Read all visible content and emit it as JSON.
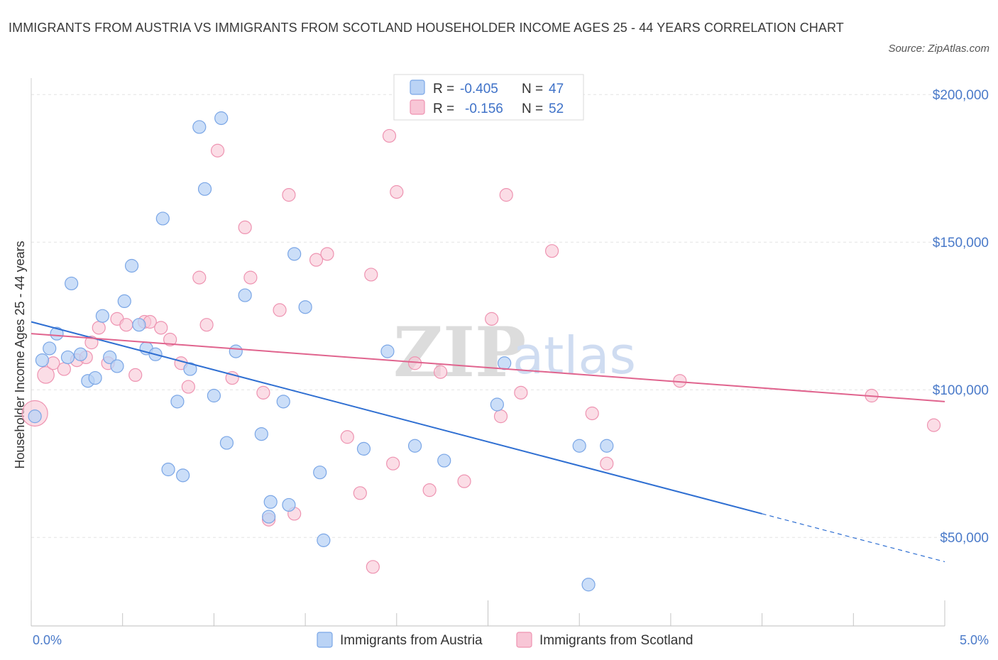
{
  "title": "IMMIGRANTS FROM AUSTRIA VS IMMIGRANTS FROM SCOTLAND HOUSEHOLDER INCOME AGES 25 - 44 YEARS CORRELATION CHART",
  "source": "Source: ZipAtlas.com",
  "watermark": {
    "zip": "ZIP",
    "atlas": "atlas"
  },
  "colors": {
    "austria_fill": "#bad3f5",
    "austria_stroke": "#7aa6e6",
    "austria_line": "#2f6fd2",
    "scotland_fill": "#f8c6d6",
    "scotland_stroke": "#ee93b1",
    "scotland_line": "#e0648e",
    "grid": "#e3e3e3",
    "tick_text": "#4a7ac9"
  },
  "stats": {
    "r_label": "R =",
    "n_label": "N =",
    "austria": {
      "r": "-0.405",
      "n": "47"
    },
    "scotland": {
      "r": "-0.156",
      "n": "52"
    }
  },
  "chart_data": {
    "type": "scatter",
    "title": "IMMIGRANTS FROM AUSTRIA VS IMMIGRANTS FROM SCOTLAND HOUSEHOLDER INCOME AGES 25 - 44 YEARS CORRELATION CHART",
    "xlabel": "",
    "ylabel": "Householder Income Ages 25 - 44 years",
    "xlim": [
      0,
      5
    ],
    "ylim": [
      20000,
      220000
    ],
    "x_tick_labels": [
      {
        "value": 0,
        "label": "0.0%"
      },
      {
        "value": 5,
        "label": "5.0%"
      }
    ],
    "y_ticks": [
      {
        "value": 200000,
        "label": "$200,000"
      },
      {
        "value": 150000,
        "label": "$150,000"
      },
      {
        "value": 100000,
        "label": "$100,000"
      },
      {
        "value": 50000,
        "label": "$50,000"
      }
    ],
    "grid": true,
    "legend_position": "bottom-center",
    "series": [
      {
        "name": "Immigrants from Austria",
        "color": "#7aa6e6",
        "points": [
          [
            0.06,
            110000,
            1
          ],
          [
            0.1,
            114000,
            1
          ],
          [
            0.14,
            119000,
            1
          ],
          [
            0.2,
            111000,
            1
          ],
          [
            0.22,
            136000,
            1
          ],
          [
            0.27,
            112000,
            1
          ],
          [
            0.31,
            103000,
            1
          ],
          [
            0.35,
            104000,
            1
          ],
          [
            0.39,
            125000,
            1
          ],
          [
            0.43,
            111000,
            1
          ],
          [
            0.47,
            108000,
            1
          ],
          [
            0.51,
            130000,
            1
          ],
          [
            0.55,
            142000,
            1
          ],
          [
            0.59,
            122000,
            1
          ],
          [
            0.63,
            114000,
            1
          ],
          [
            0.68,
            112000,
            1
          ],
          [
            0.72,
            158000,
            1
          ],
          [
            0.75,
            73000,
            1
          ],
          [
            0.8,
            96000,
            1
          ],
          [
            0.83,
            71000,
            1
          ],
          [
            0.87,
            107000,
            1
          ],
          [
            0.92,
            189000,
            1
          ],
          [
            0.95,
            168000,
            1
          ],
          [
            1.0,
            98000,
            1
          ],
          [
            1.04,
            192000,
            1
          ],
          [
            1.07,
            82000,
            1
          ],
          [
            1.12,
            113000,
            1
          ],
          [
            1.17,
            132000,
            1
          ],
          [
            1.26,
            85000,
            1
          ],
          [
            1.3,
            57000,
            1
          ],
          [
            1.31,
            62000,
            1
          ],
          [
            1.38,
            96000,
            1
          ],
          [
            1.41,
            61000,
            1
          ],
          [
            1.44,
            146000,
            1
          ],
          [
            1.5,
            128000,
            1
          ],
          [
            1.58,
            72000,
            1
          ],
          [
            1.6,
            49000,
            1
          ],
          [
            1.82,
            80000,
            1
          ],
          [
            1.95,
            113000,
            1
          ],
          [
            2.1,
            81000,
            1
          ],
          [
            2.26,
            76000,
            1
          ],
          [
            2.55,
            95000,
            1
          ],
          [
            2.59,
            109000,
            1
          ],
          [
            3.0,
            81000,
            1
          ],
          [
            3.05,
            34000,
            1
          ],
          [
            3.15,
            81000,
            1
          ],
          [
            0.02,
            91000,
            1
          ]
        ],
        "trend": {
          "x0": 0,
          "y0": 123000,
          "x1": 4.0,
          "y1": 58000,
          "dash_to_x": 5.0
        }
      },
      {
        "name": "Immigrants from Scotland",
        "color": "#ee93b1",
        "points": [
          [
            0.02,
            92000,
            2
          ],
          [
            0.08,
            105000,
            1.3
          ],
          [
            0.12,
            109000,
            1
          ],
          [
            0.18,
            107000,
            1
          ],
          [
            0.25,
            110000,
            1
          ],
          [
            0.3,
            111000,
            1
          ],
          [
            0.33,
            116000,
            1
          ],
          [
            0.37,
            121000,
            1
          ],
          [
            0.42,
            109000,
            1
          ],
          [
            0.47,
            124000,
            1
          ],
          [
            0.52,
            122000,
            1
          ],
          [
            0.57,
            105000,
            1
          ],
          [
            0.62,
            123000,
            1
          ],
          [
            0.65,
            123000,
            1
          ],
          [
            0.71,
            121000,
            1
          ],
          [
            0.76,
            117000,
            1
          ],
          [
            0.82,
            109000,
            1
          ],
          [
            0.86,
            101000,
            1
          ],
          [
            0.92,
            138000,
            1
          ],
          [
            0.96,
            122000,
            1
          ],
          [
            1.02,
            181000,
            1
          ],
          [
            1.1,
            104000,
            1
          ],
          [
            1.17,
            155000,
            1
          ],
          [
            1.2,
            138000,
            1
          ],
          [
            1.27,
            99000,
            1
          ],
          [
            1.3,
            56000,
            1
          ],
          [
            1.36,
            127000,
            1
          ],
          [
            1.41,
            166000,
            1
          ],
          [
            1.44,
            58000,
            1
          ],
          [
            1.56,
            144000,
            1
          ],
          [
            1.62,
            146000,
            1
          ],
          [
            1.73,
            84000,
            1
          ],
          [
            1.8,
            65000,
            1
          ],
          [
            1.87,
            40000,
            1
          ],
          [
            1.86,
            139000,
            1
          ],
          [
            1.96,
            186000,
            1
          ],
          [
            1.98,
            75000,
            1
          ],
          [
            2.0,
            167000,
            1
          ],
          [
            2.1,
            109000,
            1
          ],
          [
            2.18,
            66000,
            1
          ],
          [
            2.24,
            106000,
            1
          ],
          [
            2.37,
            69000,
            1
          ],
          [
            2.52,
            124000,
            1
          ],
          [
            2.57,
            91000,
            1
          ],
          [
            2.6,
            166000,
            1
          ],
          [
            2.68,
            99000,
            1
          ],
          [
            2.85,
            147000,
            1
          ],
          [
            3.07,
            92000,
            1
          ],
          [
            3.15,
            75000,
            1
          ],
          [
            3.55,
            103000,
            1
          ],
          [
            4.6,
            98000,
            1
          ],
          [
            4.94,
            88000,
            1
          ]
        ],
        "trend": {
          "x0": 0,
          "y0": 119000,
          "x1": 5.0,
          "y1": 96000
        }
      }
    ]
  }
}
